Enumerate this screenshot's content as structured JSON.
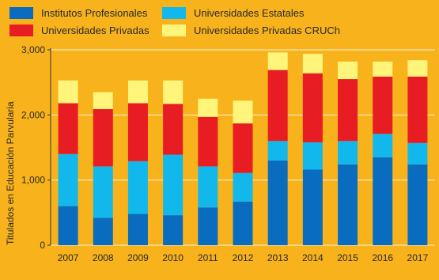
{
  "chart_data": {
    "type": "bar",
    "stacked": true,
    "title": "",
    "xlabel": "",
    "ylabel": "Titulados en Educación Parvularia",
    "ylim": [
      0,
      3000
    ],
    "yticks": [
      0,
      1000,
      2000,
      3000
    ],
    "ytick_labels": [
      "0",
      "1,000",
      "2,000",
      "3,000"
    ],
    "grid": true,
    "legend_position": "top",
    "categories": [
      "2007",
      "2008",
      "2009",
      "2010",
      "2011",
      "2012",
      "2013",
      "2014",
      "2015",
      "2016",
      "2017"
    ],
    "series": [
      {
        "name": "Institutos Profesionales",
        "color": "#0a6cbf",
        "values": [
          600,
          420,
          480,
          460,
          580,
          670,
          1300,
          1160,
          1240,
          1350,
          1240
        ]
      },
      {
        "name": "Universidades Estatales",
        "color": "#12b8ec",
        "values": [
          800,
          790,
          810,
          930,
          630,
          440,
          300,
          420,
          360,
          360,
          330
        ]
      },
      {
        "name": "Universidades Privadas",
        "color": "#e81c23",
        "values": [
          780,
          880,
          890,
          780,
          760,
          760,
          1090,
          1060,
          950,
          880,
          1020
        ]
      },
      {
        "name": "Universidades Privadas CRUCh",
        "color": "#fff57a",
        "values": [
          350,
          260,
          350,
          360,
          280,
          350,
          270,
          300,
          270,
          230,
          250
        ]
      }
    ]
  }
}
